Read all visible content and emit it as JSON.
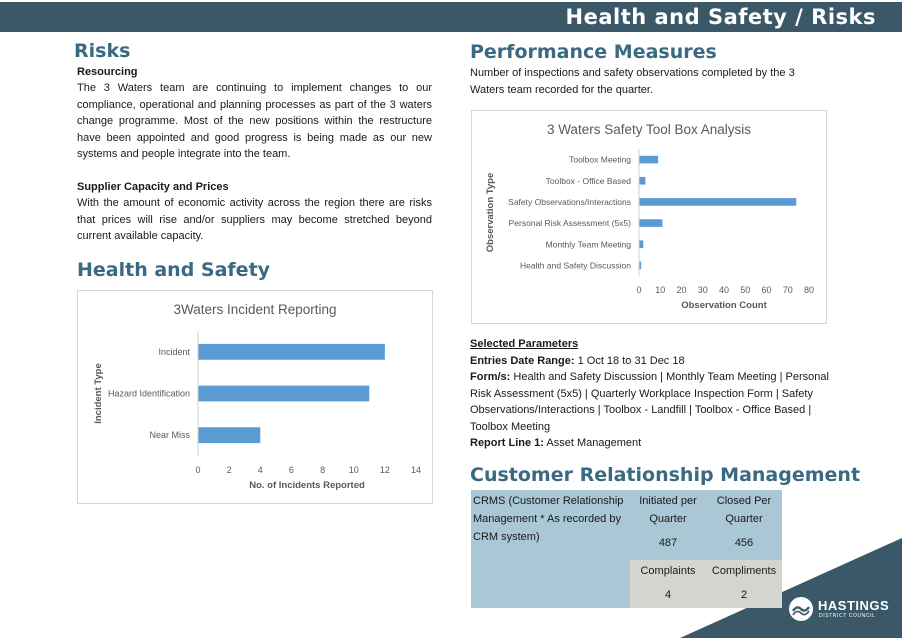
{
  "banner": {
    "title": "Health and Safety / Risks"
  },
  "risks": {
    "heading": "Risks",
    "resourcing_title": "Resourcing",
    "resourcing_text": "The 3 Waters team are continuing to implement changes to our compliance, operational and planning processes as part of the 3 waters change programme. Most of the new positions within the restructure have been appointed and good progress is being made as our new systems and people integrate into the team.",
    "supplier_title": "Supplier Capacity and Prices",
    "supplier_text": "With the amount of economic activity across the region there are risks that prices will rise and/or suppliers may become stretched beyond current available capacity."
  },
  "health_safety": {
    "heading": "Health and Safety"
  },
  "performance": {
    "heading": "Performance Measures",
    "intro": "Number of inspections and safety observations completed by the 3 Waters team recorded for the quarter."
  },
  "chart_data": [
    {
      "type": "bar",
      "orientation": "horizontal",
      "title": "3Waters Incident Reporting",
      "xlabel": "No. of Incidents Reported",
      "ylabel": "Incident Type",
      "categories": [
        "Incident",
        "Hazard Identification",
        "Near Miss"
      ],
      "values": [
        12,
        11,
        4
      ],
      "xlim": [
        0,
        14
      ],
      "xticks": [
        "0",
        "2",
        "4",
        "6",
        "8",
        "10",
        "12",
        "14"
      ],
      "color": "#5b9bd5",
      "grid": false,
      "legend": "none"
    },
    {
      "type": "bar",
      "orientation": "horizontal",
      "title": "3 Waters Safety Tool Box Analysis",
      "xlabel": "Observation Count",
      "ylabel": "Observation Type",
      "categories": [
        "Toolbox Meeting",
        "Toolbox - Office Based",
        "Safety Observations/Interactions",
        "Personal Risk Assessment (5x5)",
        "Monthly Team Meeting",
        "Health and Safety Discussion"
      ],
      "values": [
        9,
        3,
        74,
        11,
        2,
        1
      ],
      "xlim": [
        0,
        80
      ],
      "xticks": [
        "0",
        "10",
        "20",
        "30",
        "40",
        "50",
        "60",
        "70",
        "80"
      ],
      "color": "#5b9bd5",
      "grid": false,
      "legend": "none"
    }
  ],
  "params": {
    "title": "Selected Parameters",
    "date_label": "Entries Date Range:",
    "date_value": "1 Oct 18 to 31 Dec 18",
    "forms_label": "Form/s:",
    "forms_value": "Health and Safety Discussion | Monthly Team Meeting | Personal Risk Assessment (5x5) | Quarterly Workplace Inspection Form | Safety Observations/Interactions | Toolbox - Landfill | Toolbox - Office Based | Toolbox Meeting",
    "report_label": "Report Line 1:",
    "report_value": "Asset Management"
  },
  "crm": {
    "heading": "Customer Relationship Management",
    "label": "CRMS (Customer Relationship Management * As recorded by CRM system)",
    "initiated_header": "Initiated per Quarter",
    "initiated_value": "487",
    "closed_header": "Closed Per Quarter",
    "closed_value": "456",
    "complaints_header": "Complaints",
    "complaints_value": "4",
    "compliments_header": "Compliments",
    "compliments_value": "2"
  },
  "logo": {
    "name": "HASTINGS",
    "subtitle": "DISTRICT COUNCIL"
  },
  "colors": {
    "banner": "#3a5868",
    "heading": "#3a6a82",
    "bar": "#5b9bd5",
    "crm_blue": "#a9c7d5",
    "crm_grey": "#d4d4d0"
  }
}
